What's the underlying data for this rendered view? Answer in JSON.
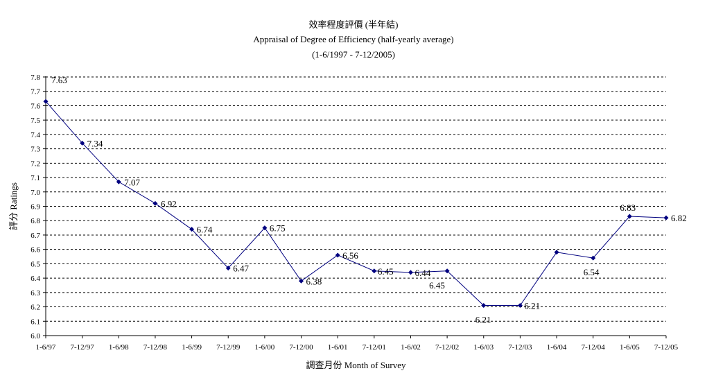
{
  "chart_data": {
    "type": "line",
    "title": "效率程度評價 (半年結)",
    "subtitle": "Appraisal of Degree of Efficiency (half-yearly average)",
    "subtitle2": "(1-6/1997 - 7-12/2005)",
    "xlabel": "調查月份 Month of Survey",
    "ylabel": "評分 Ratings",
    "ylim": [
      6.0,
      7.8
    ],
    "yticks": [
      "6.0",
      "6.1",
      "6.2",
      "6.3",
      "6.4",
      "6.5",
      "6.6",
      "6.7",
      "6.8",
      "6.9",
      "7.0",
      "7.1",
      "7.2",
      "7.3",
      "7.4",
      "7.5",
      "7.6",
      "7.7",
      "7.8"
    ],
    "grid": "horizontal dashed",
    "legend": "none",
    "line_color": "#00007f",
    "categories": [
      "1-6/97",
      "7-12/97",
      "1-6/98",
      "7-12/98",
      "1-6/99",
      "7-12/99",
      "1-6/00",
      "7-12/00",
      "1-6/01",
      "7-12/01",
      "1-6/02",
      "7-12/02",
      "1-6/03",
      "7-12/03",
      "1-6/04",
      "7-12/04",
      "1-6/05",
      "7-12/05"
    ],
    "values": [
      7.63,
      7.34,
      7.07,
      6.92,
      6.74,
      6.47,
      6.75,
      6.38,
      6.56,
      6.45,
      6.44,
      6.45,
      6.21,
      6.21,
      6.58,
      6.54,
      6.83,
      6.82
    ],
    "data_labels": [
      "7.63",
      "7.34",
      "7.07",
      "6.92",
      "6.74",
      "6.47",
      "6.75",
      "6.38",
      "6.56",
      "6.45",
      "6.44",
      "6.45",
      "6.21",
      "6.21",
      "",
      "6.54",
      "6.83",
      "6.82"
    ]
  }
}
